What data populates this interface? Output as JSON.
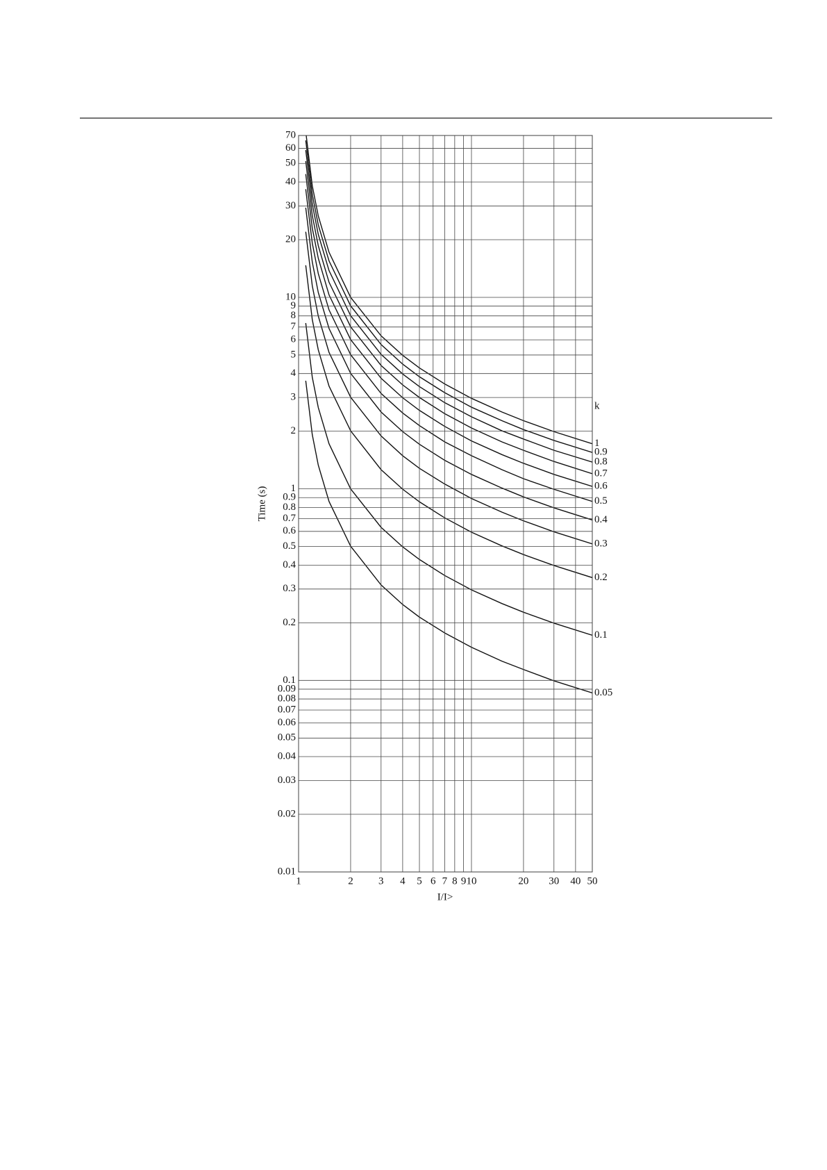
{
  "chart_data": {
    "type": "line",
    "log_x": true,
    "log_y": true,
    "grid": true,
    "y_label": "Time (s)",
    "x_label": "I/I>",
    "legend_title": "k",
    "xlim": [
      1,
      50
    ],
    "ylim": [
      0.01,
      70
    ],
    "xticks": [
      1,
      2,
      3,
      4,
      5,
      6,
      7,
      8,
      9,
      10,
      20,
      30,
      40,
      50
    ],
    "yticks": [
      0.01,
      0.02,
      0.03,
      0.04,
      0.05,
      0.06,
      0.07,
      0.08,
      0.09,
      0.1,
      0.2,
      0.3,
      0.4,
      0.5,
      0.6,
      0.7,
      0.8,
      0.9,
      1,
      2,
      3,
      4,
      5,
      6,
      7,
      8,
      9,
      10,
      20,
      30,
      40,
      50,
      60,
      70
    ],
    "x": [
      1.1,
      1.2,
      1.3,
      1.5,
      2,
      3,
      4,
      5,
      7,
      10,
      15,
      20,
      30,
      50
    ],
    "series": [
      {
        "name": "1",
        "color": "#111111",
        "values": [
          73.4,
          38.3,
          26.6,
          17.2,
          10.0,
          6.3,
          4.98,
          4.28,
          3.53,
          2.97,
          2.52,
          2.27,
          1.99,
          1.72
        ]
      },
      {
        "name": "0.9",
        "color": "#111111",
        "values": [
          66.0,
          34.5,
          23.9,
          15.5,
          9.03,
          5.67,
          4.48,
          3.85,
          3.18,
          2.67,
          2.27,
          2.04,
          1.79,
          1.55
        ]
      },
      {
        "name": "0.8",
        "color": "#111111",
        "values": [
          58.7,
          30.7,
          21.3,
          13.8,
          8.02,
          5.04,
          3.98,
          3.42,
          2.82,
          2.38,
          2.01,
          1.82,
          1.59,
          1.38
        ]
      },
      {
        "name": "0.7",
        "color": "#111111",
        "values": [
          51.4,
          26.8,
          18.6,
          12.0,
          7.02,
          4.41,
          3.49,
          3.0,
          2.47,
          2.08,
          1.76,
          1.59,
          1.39,
          1.2
        ]
      },
      {
        "name": "0.6",
        "color": "#111111",
        "values": [
          44.0,
          23.0,
          16.0,
          10.3,
          6.02,
          3.78,
          2.99,
          2.57,
          2.12,
          1.78,
          1.51,
          1.36,
          1.19,
          1.03
        ]
      },
      {
        "name": "0.5",
        "color": "#111111",
        "values": [
          36.7,
          19.2,
          13.3,
          8.6,
          5.02,
          3.15,
          2.49,
          2.14,
          1.76,
          1.49,
          1.26,
          1.13,
          0.995,
          0.86
        ]
      },
      {
        "name": "0.4",
        "color": "#111111",
        "values": [
          29.4,
          15.3,
          10.6,
          6.88,
          4.01,
          2.52,
          1.99,
          1.71,
          1.41,
          1.19,
          1.01,
          0.908,
          0.796,
          0.688
        ]
      },
      {
        "name": "0.3",
        "color": "#111111",
        "values": [
          22.0,
          11.5,
          7.98,
          5.16,
          3.01,
          1.89,
          1.49,
          1.28,
          1.06,
          0.891,
          0.756,
          0.681,
          0.597,
          0.516
        ]
      },
      {
        "name": "0.2",
        "color": "#111111",
        "values": [
          14.7,
          7.66,
          5.32,
          3.44,
          2.01,
          1.26,
          0.996,
          0.856,
          0.706,
          0.594,
          0.504,
          0.454,
          0.398,
          0.344
        ]
      },
      {
        "name": "0.1",
        "color": "#111111",
        "values": [
          7.34,
          3.83,
          2.66,
          1.72,
          1.0,
          0.63,
          0.498,
          0.428,
          0.353,
          0.297,
          0.252,
          0.227,
          0.199,
          0.172
        ]
      },
      {
        "name": "0.05",
        "color": "#111111",
        "values": [
          3.67,
          1.92,
          1.33,
          0.86,
          0.502,
          0.315,
          0.249,
          0.214,
          0.177,
          0.149,
          0.126,
          0.114,
          0.0995,
          0.086
        ]
      }
    ]
  }
}
